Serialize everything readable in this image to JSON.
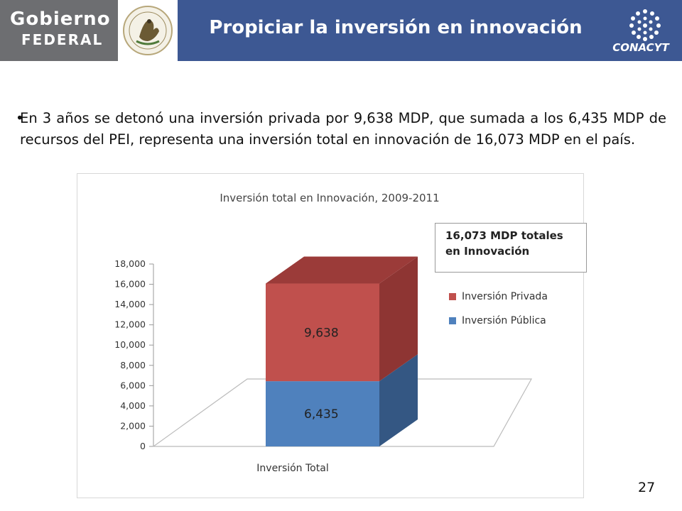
{
  "header": {
    "gob_line1": "Gobierno",
    "gob_line2": "FEDERAL",
    "title": "Propiciar la inversión en innovación",
    "conacyt": "CONACYT",
    "colors": {
      "bar": "#3d5893",
      "gob": "#6d6e71"
    },
    "icons": [
      "mexican-seal-icon",
      "conacyt-logo-icon"
    ]
  },
  "body": {
    "bullet": "•",
    "text": "En 3 años se detonó una inversión privada por 9,638 MDP, que sumada a los 6,435 MDP de recursos del PEI, representa una inversión total en innovación de 16,073 MDP en el país."
  },
  "callout": {
    "line1": "16,073 MDP totales",
    "line2": "en Innovación"
  },
  "chart_data": {
    "type": "bar",
    "stacked": true,
    "three_d": true,
    "title": "Inversión total en Innovación, 2009-2011",
    "categories": [
      "Inversión Total"
    ],
    "series": [
      {
        "name": "Inversión Pública",
        "values": [
          6435
        ],
        "color": "#4f81bd",
        "label": "6,435"
      },
      {
        "name": "Inversión Privada",
        "values": [
          9638
        ],
        "color": "#c0504d",
        "label": "9,638"
      }
    ],
    "ylim": [
      0,
      18000
    ],
    "yticks": [
      0,
      2000,
      4000,
      6000,
      8000,
      10000,
      12000,
      14000,
      16000,
      18000
    ],
    "ytick_labels": [
      "0",
      "2,000",
      "4,000",
      "6,000",
      "8,000",
      "10,000",
      "12,000",
      "14,000",
      "16,000",
      "18,000"
    ],
    "legend_position": "right",
    "grid": false
  },
  "footer": {
    "page_number": "27"
  }
}
